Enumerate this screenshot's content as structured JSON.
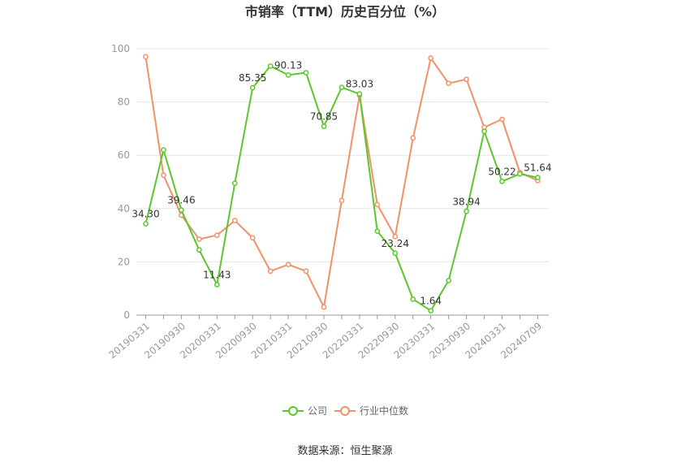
{
  "chart_data": {
    "type": "line",
    "title": "市销率（TTM）历史百分位（%）",
    "x_tick_labels": [
      "20190331",
      "20190930",
      "20200331",
      "20200930",
      "20210331",
      "20210930",
      "20220331",
      "20220930",
      "20230331",
      "20230930",
      "20240331",
      "20240709"
    ],
    "ylim": [
      0,
      100
    ],
    "y_ticks": [
      0,
      20,
      40,
      60,
      80,
      100
    ],
    "grid": true,
    "legend_position": "bottom-center",
    "series": [
      {
        "name": "公司",
        "color": "#5cc72a",
        "values": [
          34.3,
          62.0,
          39.46,
          24.5,
          11.43,
          49.5,
          85.35,
          93.5,
          90.13,
          91.0,
          70.85,
          85.5,
          83.03,
          31.5,
          23.24,
          6.0,
          1.64,
          13.0,
          38.94,
          69.0,
          50.22,
          53.0,
          51.64
        ],
        "labeled": [
          {
            "index": 0,
            "text": "34.30"
          },
          {
            "index": 2,
            "text": "39.46"
          },
          {
            "index": 4,
            "text": "11.43"
          },
          {
            "index": 6,
            "text": "85.35"
          },
          {
            "index": 8,
            "text": "90.13"
          },
          {
            "index": 10,
            "text": "70.85"
          },
          {
            "index": 12,
            "text": "83.03"
          },
          {
            "index": 14,
            "text": "23.24"
          },
          {
            "index": 16,
            "text": "1.64"
          },
          {
            "index": 18,
            "text": "38.94"
          },
          {
            "index": 20,
            "text": "50.22"
          },
          {
            "index": 22,
            "text": "51.64"
          }
        ]
      },
      {
        "name": "行业中位数",
        "color": "#f29167",
        "values": [
          97.0,
          52.5,
          37.5,
          28.5,
          30.0,
          35.5,
          29.0,
          16.5,
          19.0,
          16.5,
          3.0,
          43.0,
          82.5,
          41.5,
          29.5,
          66.5,
          96.5,
          87.0,
          88.5,
          70.5,
          73.5,
          53.5,
          50.5
        ]
      }
    ]
  },
  "source": "数据来源：恒生聚源"
}
